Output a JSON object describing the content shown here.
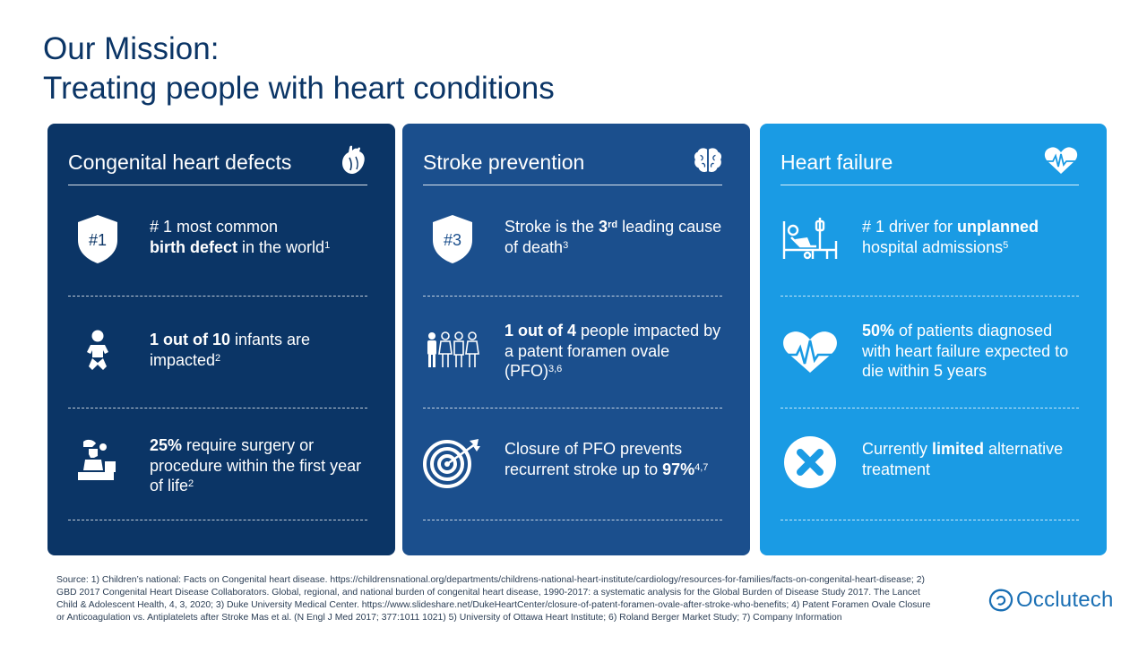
{
  "title": {
    "line1": "Our Mission:",
    "line2": "Treating people with heart conditions"
  },
  "cards": [
    {
      "title": "Congenital heart defects",
      "icon": "heart-anatomy-icon",
      "stats": [
        {
          "icon": "shield-rank-icon",
          "badge": "#1",
          "pre": "# 1 most common ",
          "bold": "birth defect",
          "post": " in the world",
          "sup": "1",
          "tail": ""
        },
        {
          "icon": "baby-icon",
          "pre": "",
          "bold": "1 out of 10",
          "post": " infants are impacted",
          "sup": "2",
          "tail": ""
        },
        {
          "icon": "surgeon-icon",
          "pre": "",
          "bold": "25%",
          "post": " require surgery or procedure within the first year of life",
          "sup": "2",
          "tail": ""
        }
      ]
    },
    {
      "title": "Stroke prevention",
      "icon": "brain-icon",
      "stats": [
        {
          "icon": "shield-rank-icon",
          "badge": "#3",
          "pre": "Stroke is the ",
          "bold": "3",
          "boldsup": "rd",
          "post": " leading cause of death",
          "sup": "3",
          "tail": ""
        },
        {
          "icon": "people-group-icon",
          "pre": "",
          "bold": "1 out of 4",
          "post": " people impacted by a patent foramen ovale (PFO)",
          "sup": "3,6",
          "tail": ""
        },
        {
          "icon": "target-icon",
          "pre": "Closure of PFO prevents recurrent stroke up to ",
          "bold": "97%",
          "post": "",
          "sup": "4,7",
          "tail": ""
        }
      ]
    },
    {
      "title": "Heart failure",
      "icon": "heart-pulse-icon",
      "stats": [
        {
          "icon": "hospital-bed-icon",
          "pre": "# 1 driver for ",
          "bold": "unplanned",
          "post": " hospital admissions",
          "sup": "5",
          "tail": ""
        },
        {
          "icon": "heart-rate-icon",
          "pre": "",
          "bold": "50%",
          "post": " of patients diagnosed with heart failure expected to die within 5 years",
          "sup": "",
          "tail": ""
        },
        {
          "icon": "x-circle-icon",
          "pre": "Currently ",
          "bold": "limited",
          "post": " alternative treatment",
          "sup": "",
          "tail": ""
        }
      ]
    }
  ],
  "source": "Source: 1) Children’s national: Facts on Congenital heart disease. https://childrensnational.org/departments/childrens-national-heart-institute/cardiology/resources-for-families/facts-on-congenital-heart-disease; 2) GBD 2017 Congenital Heart Disease Collaborators. Global, regional, and national burden of congenital heart disease, 1990-2017: a systematic analysis for the Global Burden of Disease Study 2017. The Lancet Child & Adolescent Health, 4, 3, 2020; 3) Duke University Medical Center. https://www.slideshare.net/DukeHeartCenter/closure-of-patent-foramen-ovale-after-stroke-who-benefits; 4) Patent Foramen Ovale Closure or Anticoagulation vs. Antiplatelets after Stroke Mas et al. (N Engl J Med 2017; 377:1011 1021) 5) University of Ottawa Heart Institute; 6) Roland Berger Market Study; 7) Company Information",
  "logo": {
    "text": "Occlutech",
    "icon": "occlutech-logo-icon"
  },
  "colors": {
    "navy": "#0b3566",
    "mid_blue": "#1b4f8d",
    "light_blue": "#1a9be4",
    "title_text": "#0b3566"
  }
}
